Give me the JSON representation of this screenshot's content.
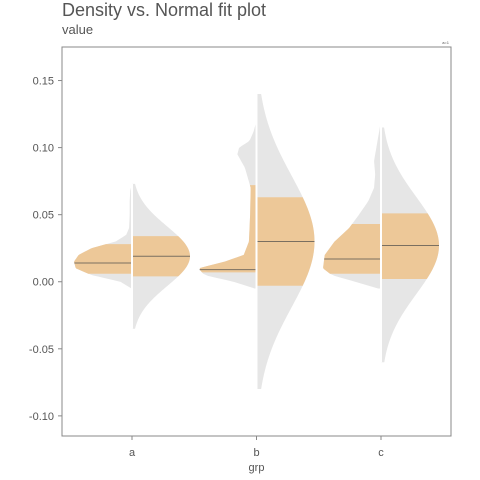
{
  "chart_data": {
    "type": "violin",
    "title": "Density vs. Normal fit plot",
    "subtitle": "value",
    "xlabel": "grp",
    "ylabel": "",
    "legend_text": "a=1",
    "legend_position": "top-right",
    "grid": false,
    "ylim": [
      -0.115,
      0.175
    ],
    "yticks": [
      "0.15",
      "0.10",
      "0.05",
      "0.00",
      "-0.05",
      "-0.10"
    ],
    "ytick_values": [
      0.15,
      0.1,
      0.05,
      0.0,
      -0.05,
      -0.1
    ],
    "categories": [
      "a",
      "b",
      "c"
    ],
    "groups": [
      {
        "name": "a",
        "density": {
          "range": [
            -0.005,
            0.073
          ],
          "median": 0.014,
          "q1": 0.006,
          "q3": 0.028,
          "shape": [
            [
              -0.005,
              0.01
            ],
            [
              0.0,
              0.2
            ],
            [
              0.005,
              0.7
            ],
            [
              0.01,
              0.97
            ],
            [
              0.015,
              1.0
            ],
            [
              0.02,
              0.92
            ],
            [
              0.025,
              0.7
            ],
            [
              0.03,
              0.28
            ],
            [
              0.035,
              0.1
            ],
            [
              0.04,
              0.05
            ],
            [
              0.05,
              0.04
            ],
            [
              0.06,
              0.04
            ],
            [
              0.068,
              0.03
            ],
            [
              0.073,
              0.0
            ]
          ]
        },
        "normal": {
          "range": [
            -0.035,
            0.073
          ],
          "mean": 0.019,
          "q1": 0.004,
          "q3": 0.034
        }
      },
      {
        "name": "b",
        "density": {
          "range": [
            -0.005,
            0.12
          ],
          "median": 0.009,
          "q1": 0.007,
          "q3": 0.072,
          "shape": [
            [
              -0.005,
              0.03
            ],
            [
              0.0,
              0.4
            ],
            [
              0.005,
              0.9
            ],
            [
              0.01,
              1.0
            ],
            [
              0.015,
              0.55
            ],
            [
              0.02,
              0.22
            ],
            [
              0.03,
              0.13
            ],
            [
              0.05,
              0.11
            ],
            [
              0.07,
              0.1
            ],
            [
              0.085,
              0.2
            ],
            [
              0.095,
              0.33
            ],
            [
              0.1,
              0.3
            ],
            [
              0.105,
              0.12
            ],
            [
              0.112,
              0.05
            ],
            [
              0.12,
              0.0
            ]
          ]
        },
        "normal": {
          "range": [
            -0.08,
            0.14
          ],
          "mean": 0.03,
          "q1": -0.003,
          "q3": 0.063
        }
      },
      {
        "name": "c",
        "density": {
          "range": [
            -0.005,
            0.12
          ],
          "median": 0.017,
          "q1": 0.006,
          "q3": 0.043,
          "shape": [
            [
              -0.005,
              0.05
            ],
            [
              0.0,
              0.45
            ],
            [
              0.005,
              0.85
            ],
            [
              0.01,
              1.0
            ],
            [
              0.02,
              0.97
            ],
            [
              0.03,
              0.8
            ],
            [
              0.04,
              0.55
            ],
            [
              0.05,
              0.38
            ],
            [
              0.06,
              0.22
            ],
            [
              0.07,
              0.12
            ],
            [
              0.08,
              0.1
            ],
            [
              0.09,
              0.12
            ],
            [
              0.1,
              0.08
            ],
            [
              0.11,
              0.04
            ],
            [
              0.12,
              0.0
            ]
          ]
        },
        "normal": {
          "range": [
            -0.06,
            0.115
          ],
          "mean": 0.027,
          "q1": 0.002,
          "q3": 0.051
        }
      }
    ],
    "colors": {
      "violin_fill": "#e6e6e6",
      "iqr_fill": "#edc898",
      "median_line": "#7a6f60",
      "axis": "#888888",
      "text": "#555555"
    }
  }
}
